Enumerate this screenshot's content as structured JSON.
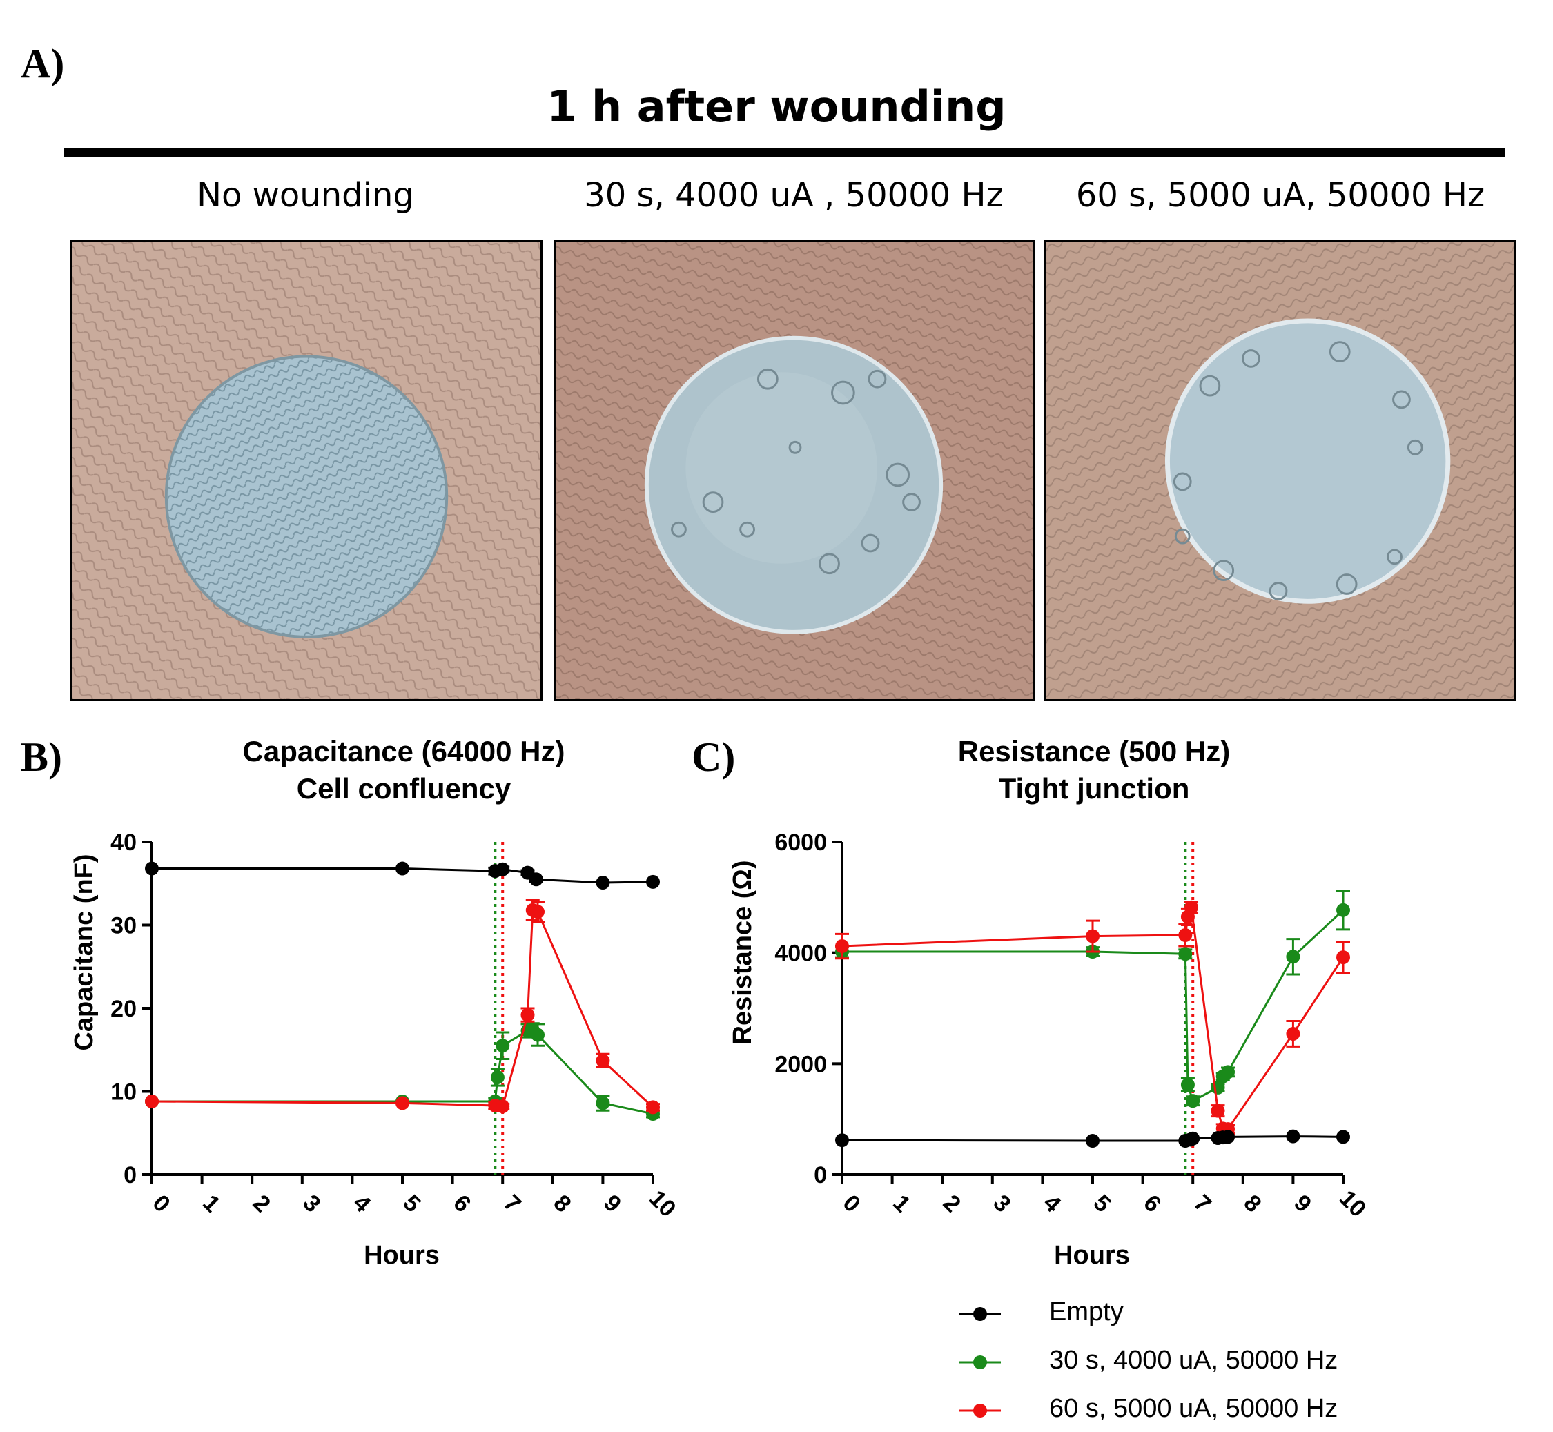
{
  "panel_labels": {
    "a": "A)",
    "b": "B)",
    "c": "C)"
  },
  "panel_a": {
    "headline": "1 h after wounding",
    "images": [
      {
        "caption": "No wounding"
      },
      {
        "caption": "30 s, 4000 uA , 50000 Hz"
      },
      {
        "caption": "60 s, 5000 uA, 50000 Hz"
      }
    ]
  },
  "colors": {
    "empty": "#000000",
    "green": "#1a8a1a",
    "red": "#ee1111"
  },
  "legend": {
    "items": [
      {
        "label": "Empty",
        "color": "#000000"
      },
      {
        "label": "30 s, 4000 uA, 50000 Hz",
        "color": "#1a8a1a"
      },
      {
        "label": "60 s, 5000 uA, 50000 Hz",
        "color": "#ee1111"
      }
    ]
  },
  "chart_data": [
    {
      "type": "line",
      "title": "Capacitance (64000 Hz)",
      "subtitle": "Cell confluency",
      "xlabel": "Hours",
      "ylabel": "Capacitanc (nF)",
      "xlim": [
        0,
        10
      ],
      "ylim": [
        0,
        40
      ],
      "xticks": [
        "0",
        "1",
        "2",
        "3",
        "4",
        "5",
        "6",
        "7",
        "8",
        "9",
        "10"
      ],
      "yticks": [
        "0",
        "10",
        "20",
        "30",
        "40"
      ],
      "grid": false,
      "vlines": [
        {
          "x": 6.85,
          "color": "green",
          "style": "dotted"
        },
        {
          "x": 7.0,
          "color": "red",
          "style": "dotted"
        }
      ],
      "series": [
        {
          "name": "Empty",
          "x": [
            0,
            5,
            6.85,
            7.0,
            7.5,
            7.67,
            9,
            10
          ],
          "y": [
            36.8,
            36.8,
            36.5,
            36.7,
            36.3,
            35.5,
            35.1,
            35.2
          ],
          "err": [
            0,
            0,
            0.4,
            0.3,
            0.3,
            0.3,
            0,
            0
          ]
        },
        {
          "name": "30 s, 4000 uA, 50000 Hz",
          "x": [
            0,
            5,
            6.85,
            6.9,
            7.0,
            7.5,
            7.6,
            7.7,
            9,
            10
          ],
          "y": [
            8.8,
            8.8,
            8.8,
            11.7,
            15.5,
            17.3,
            17.4,
            16.8,
            8.6,
            7.3
          ],
          "err": [
            0,
            0,
            0.4,
            1.0,
            1.6,
            0.8,
            0.8,
            1.3,
            0.9,
            0.4
          ]
        },
        {
          "name": "60 s, 5000 uA, 50000 Hz",
          "x": [
            0,
            5,
            6.85,
            7.0,
            7.5,
            7.6,
            7.7,
            9,
            10
          ],
          "y": [
            8.8,
            8.6,
            8.3,
            8.2,
            19.2,
            31.8,
            31.6,
            13.7,
            8.1
          ],
          "err": [
            0,
            0,
            0.4,
            0.3,
            0.8,
            1.2,
            1.2,
            0.8,
            0.4
          ]
        }
      ]
    },
    {
      "type": "line",
      "title": "Resistance (500 Hz)",
      "subtitle": "Tight junction",
      "xlabel": "Hours",
      "ylabel": "Resistance (Ω)",
      "xlim": [
        0,
        10
      ],
      "ylim": [
        0,
        6000
      ],
      "xticks": [
        "0",
        "1",
        "2",
        "3",
        "4",
        "5",
        "6",
        "7",
        "8",
        "9",
        "10"
      ],
      "yticks": [
        "0",
        "2000",
        "4000",
        "6000"
      ],
      "grid": false,
      "vlines": [
        {
          "x": 6.85,
          "color": "green",
          "style": "dotted"
        },
        {
          "x": 7.0,
          "color": "red",
          "style": "dotted"
        }
      ],
      "series": [
        {
          "name": "Empty",
          "x": [
            0,
            5,
            6.85,
            6.95,
            7.0,
            7.5,
            7.6,
            7.7,
            9,
            10
          ],
          "y": [
            620,
            610,
            610,
            630,
            650,
            660,
            670,
            680,
            690,
            680
          ],
          "err": [
            0,
            0,
            0,
            0,
            0,
            0,
            0,
            0,
            0,
            0
          ]
        },
        {
          "name": "30 s, 4000 uA, 50000 Hz",
          "x": [
            0,
            5,
            6.85,
            6.9,
            7.0,
            7.5,
            7.6,
            7.7,
            9,
            10
          ],
          "y": [
            4020,
            4020,
            3980,
            1620,
            1330,
            1570,
            1770,
            1850,
            3930,
            4770
          ],
          "err": [
            100,
            80,
            80,
            120,
            80,
            60,
            60,
            80,
            320,
            350
          ]
        },
        {
          "name": "60 s, 5000 uA, 50000 Hz",
          "x": [
            0,
            5,
            6.85,
            6.9,
            6.97,
            7.5,
            7.6,
            7.7,
            9,
            10
          ],
          "y": [
            4120,
            4300,
            4320,
            4650,
            4820,
            1150,
            830,
            820,
            2540,
            3920
          ],
          "err": [
            220,
            280,
            200,
            150,
            100,
            100,
            80,
            80,
            230,
            280
          ]
        }
      ]
    }
  ]
}
